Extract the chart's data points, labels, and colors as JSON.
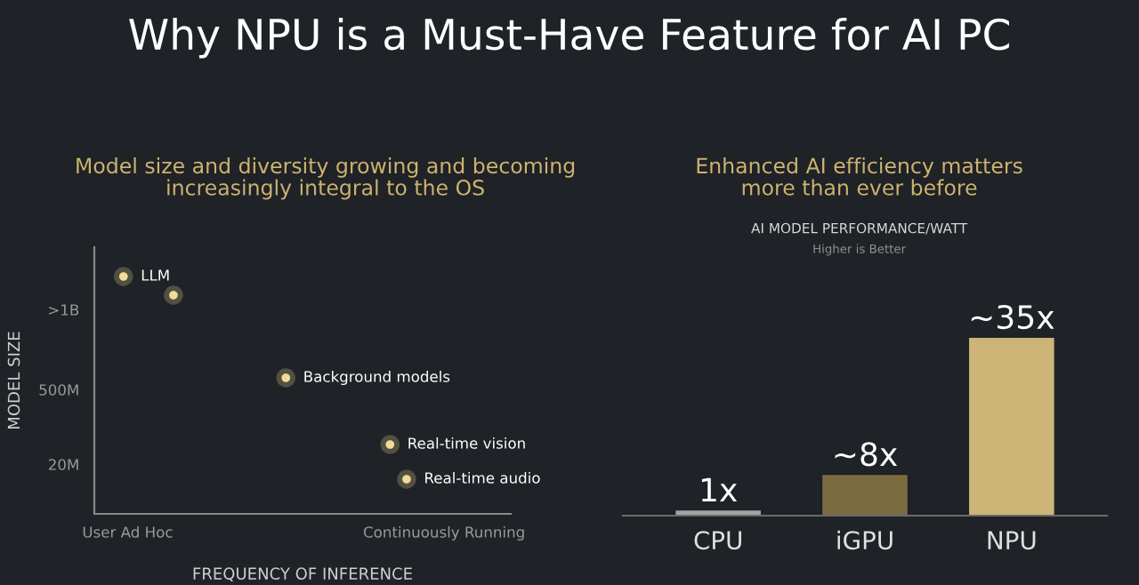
{
  "chart_data": [
    {
      "type": "other",
      "title": "Why NPU is a Must-Have Feature for AI PC",
      "subtitle": "Model size and diversity growing and becoming\nincreasingly integral to the OS",
      "xlabel": "FREQUENCY OF INFERENCE",
      "ylabel": "MODEL SIZE",
      "annotations": [
        "LLM",
        "Background models",
        "Real-time vision",
        "Real-time audio",
        ">1B",
        "500M",
        "20M",
        "User Ad Hoc",
        "Continuously Running"
      ]
    },
    {
      "type": "bar",
      "title": "Enhanced AI efficiency matters\nmore than ever before",
      "subtitle": "AI MODEL PERFORMANCE/WATT",
      "categories": [
        "CPU",
        "iGPU",
        "NPU"
      ],
      "values": [
        1,
        8,
        35
      ],
      "colors": [
        "#a3a3a3",
        "#7b6b3f",
        "#cbb476"
      ],
      "value_labels": [
        "1x",
        "~8x",
        "~35x"
      ],
      "annotations": [
        "Higher is Better"
      ],
      "grid": false
    }
  ]
}
